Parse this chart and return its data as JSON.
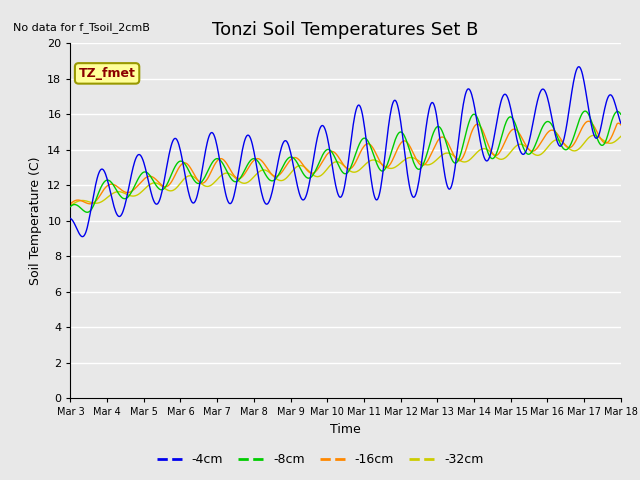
{
  "title": "Tonzi Soil Temperatures Set B",
  "xlabel": "Time",
  "ylabel": "Soil Temperature (C)",
  "no_data_label": "No data for f_Tsoil_2cmB",
  "annotation_label": "TZ_fmet",
  "annotation_color": "#8B0000",
  "annotation_bg": "#FFFF99",
  "annotation_edge": "#999900",
  "ylim": [
    0,
    20
  ],
  "yticks": [
    0,
    2,
    4,
    6,
    8,
    10,
    12,
    14,
    16,
    18,
    20
  ],
  "xtick_labels": [
    "Mar 3",
    "Mar 4",
    "Mar 5",
    "Mar 6",
    "Mar 7",
    "Mar 8",
    "Mar 9",
    "Mar 10",
    "Mar 11",
    "Mar 12",
    "Mar 13",
    "Mar 14",
    "Mar 15",
    "Mar 16",
    "Mar 17",
    "Mar 18"
  ],
  "bg_color": "#e8e8e8",
  "grid_color": "#ffffff",
  "series_colors": [
    "#0000ee",
    "#00cc00",
    "#ff8800",
    "#cccc00"
  ],
  "series_labels": [
    "-4cm",
    "-8cm",
    "-16cm",
    "-32cm"
  ],
  "n_days": 15,
  "title_fontsize": 13,
  "axis_label_fontsize": 9,
  "tick_fontsize": 8,
  "xtick_fontsize": 7
}
